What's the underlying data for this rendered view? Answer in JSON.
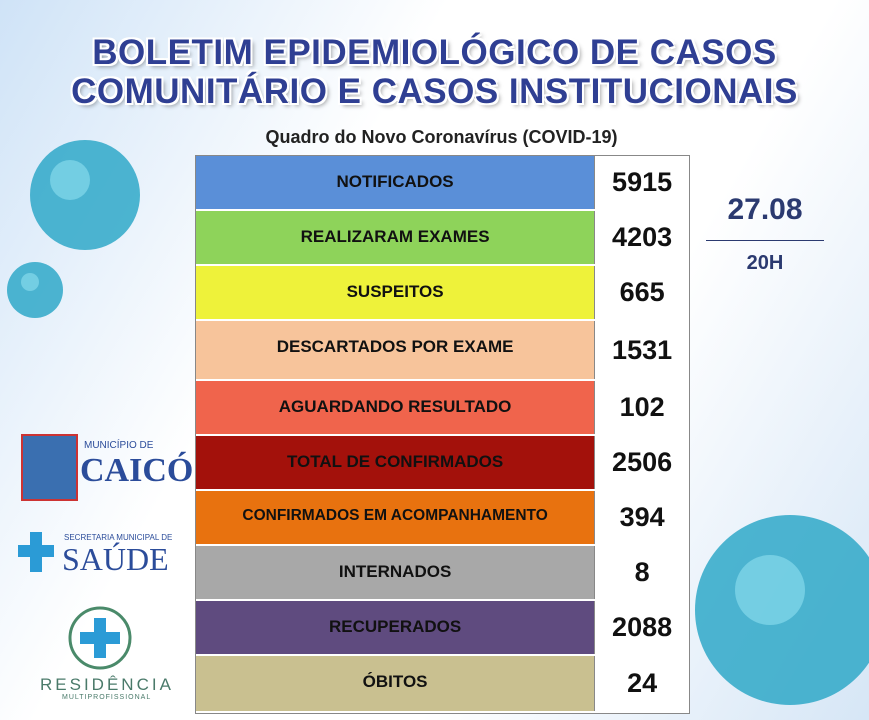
{
  "header": {
    "title_line1": "BOLETIM EPIDEMIOLÓGICO DE CASOS",
    "title_line2": "COMUNITÁRIO E CASOS INSTITUCIONAIS",
    "subtitle": "Quadro do Novo Coronavírus (COVID-19)"
  },
  "date": "27.08",
  "time": "20H",
  "table": {
    "rows": [
      {
        "label": "NOTIFICADOS",
        "value": 5915,
        "color": "#5a8fd8"
      },
      {
        "label": "REALIZARAM EXAMES",
        "value": 4203,
        "color": "#8ed35a"
      },
      {
        "label": "SUSPEITOS",
        "value": 665,
        "color": "#eef23a"
      },
      {
        "label": "DESCARTADOS POR EXAME",
        "value": 1531,
        "color": "#f7c49b"
      },
      {
        "label": "AGUARDANDO RESULTADO",
        "value": 102,
        "color": "#f0644c"
      },
      {
        "label": "TOTAL DE CONFIRMADOS",
        "value": 2506,
        "color": "#a3110b"
      },
      {
        "label": "CONFIRMADOS EM ACOMPANHAMENTO",
        "value": 394,
        "color": "#e8720f"
      },
      {
        "label": "INTERNADOS",
        "value": 8,
        "color": "#a8a8a8"
      },
      {
        "label": "RECUPERADOS",
        "value": 2088,
        "color": "#5f4b7f"
      },
      {
        "label": "ÓBITOS",
        "value": 24,
        "color": "#c9c090"
      }
    ]
  },
  "logos": {
    "municipio": "MUNICÍPIO DE",
    "caico": "CAICÓ",
    "secretaria": "SECRETARIA MUNICIPAL DE",
    "saude": "SAÚDE",
    "residencia": "RESIDÊNCIA",
    "multi": "MULTIPROFISSIONAL"
  }
}
